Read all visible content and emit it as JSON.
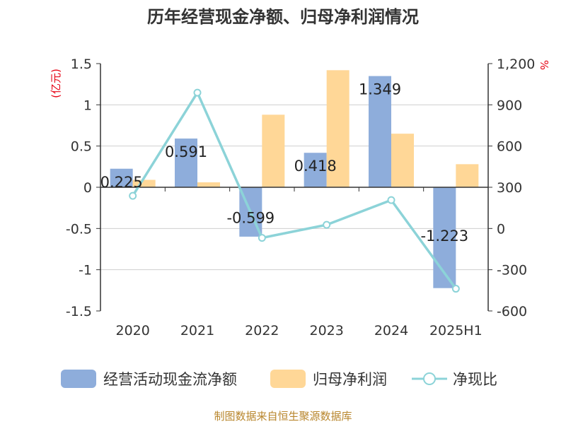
{
  "chart_data": {
    "type": "bar",
    "title": "历年经营现金净额、归母净利润情况",
    "categories": [
      "2020",
      "2021",
      "2022",
      "2023",
      "2024",
      "2025H1"
    ],
    "series": [
      {
        "name": "经营活动现金流净额",
        "type": "bar",
        "axis": "left",
        "color": "#8eaddb",
        "values": [
          0.225,
          0.591,
          -0.599,
          0.418,
          1.349,
          -1.223
        ],
        "labels": [
          "0.225",
          "0.591",
          "-0.599",
          "0.418",
          "1.349",
          "-1.223"
        ]
      },
      {
        "name": "归母净利润",
        "type": "bar",
        "axis": "left",
        "color": "#ffd797",
        "values": [
          0.09,
          0.06,
          0.88,
          1.42,
          0.65,
          0.28
        ]
      },
      {
        "name": "净现比",
        "type": "line",
        "axis": "right",
        "color": "#8cd3d8",
        "values": [
          236,
          987,
          -70,
          25,
          205,
          -440
        ]
      }
    ],
    "y_left": {
      "unit": "(亿元)",
      "min": -1.5,
      "max": 1.5,
      "ticks": [
        "1.5",
        "1",
        "0.5",
        "0",
        "-0.5",
        "-1",
        "-1.5"
      ]
    },
    "y_right": {
      "unit": "%",
      "min": -600,
      "max": 1200,
      "ticks": [
        "1,200",
        "900",
        "600",
        "300",
        "0",
        "-300",
        "-600"
      ]
    },
    "grid": true,
    "legend": "bottom"
  },
  "source": "制图数据来自恒生聚源数据库"
}
